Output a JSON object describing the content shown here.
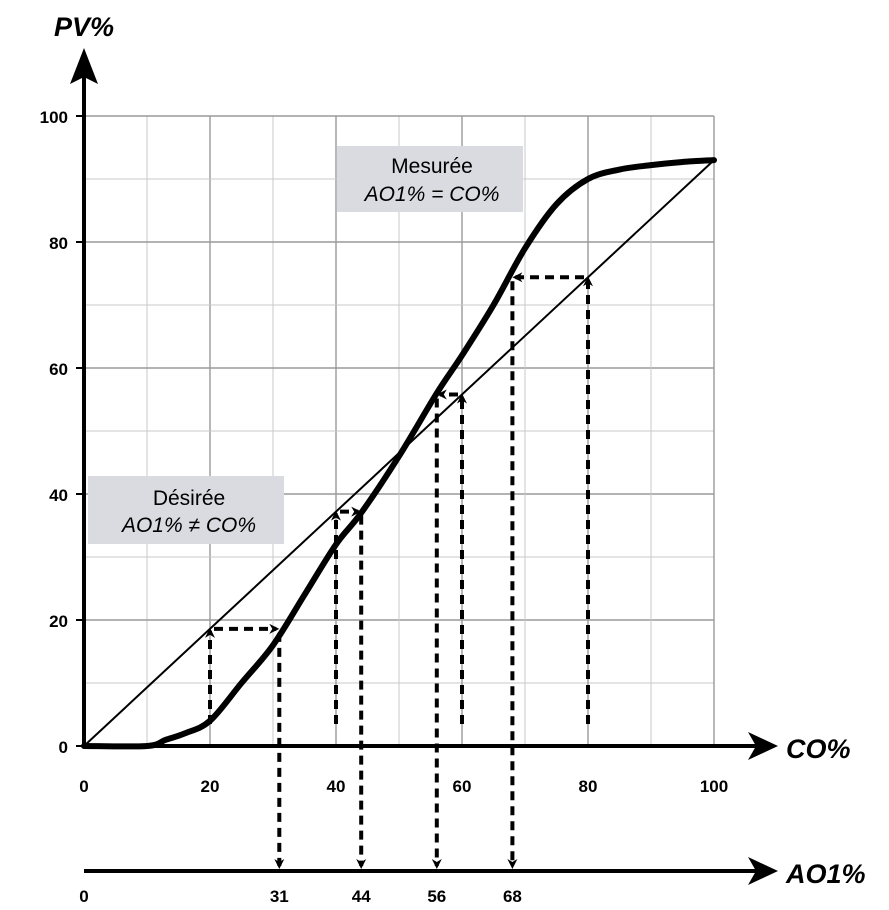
{
  "chart_data": {
    "type": "line",
    "title": "",
    "xlabel": "CO%",
    "ylabel": "PV%",
    "xlim": [
      0,
      100
    ],
    "ylim": [
      0,
      100
    ],
    "x_ticks": [
      0,
      20,
      40,
      60,
      80,
      100
    ],
    "y_ticks": [
      0,
      20,
      40,
      60,
      80,
      100
    ],
    "grid": true,
    "series": [
      {
        "name": "Désirée",
        "style": "thin",
        "x": [
          0,
          100
        ],
        "y": [
          0,
          93
        ]
      },
      {
        "name": "Mesurée",
        "style": "thick",
        "x": [
          0,
          10,
          13,
          16,
          20,
          25,
          30,
          35,
          40,
          44,
          50,
          56,
          60,
          65,
          70,
          75,
          80,
          85,
          90,
          95,
          100
        ],
        "y": [
          0,
          0,
          1,
          2,
          4,
          10,
          16,
          24,
          32,
          37,
          46,
          56,
          62,
          70,
          79,
          86,
          90,
          91.5,
          92.2,
          92.7,
          93
        ]
      }
    ],
    "annotations": {
      "desired": {
        "line1": "Désirée",
        "line2": "AO1% ≠ CO%"
      },
      "measured": {
        "line1": "Mesurée",
        "line2": "AO1% = CO%"
      }
    },
    "mapping_arrows": [
      {
        "co": 20,
        "ao": 31,
        "pv": 18.6
      },
      {
        "co": 40,
        "ao": 44,
        "pv": 37.2
      },
      {
        "co": 60,
        "ao": 56,
        "pv": 55.8
      },
      {
        "co": 80,
        "ao": 68,
        "pv": 74.4
      }
    ],
    "secondary_axis": {
      "label": "AO1%",
      "ticks": [
        "0",
        "31",
        "44",
        "56",
        "68"
      ],
      "values": [
        0,
        31,
        44,
        56,
        68
      ]
    },
    "colors": {
      "box_fill": "#d9dbe0",
      "grid_major": "#9a9a9a",
      "grid_minor": "#c9c9c9",
      "ink": "#000000"
    }
  }
}
